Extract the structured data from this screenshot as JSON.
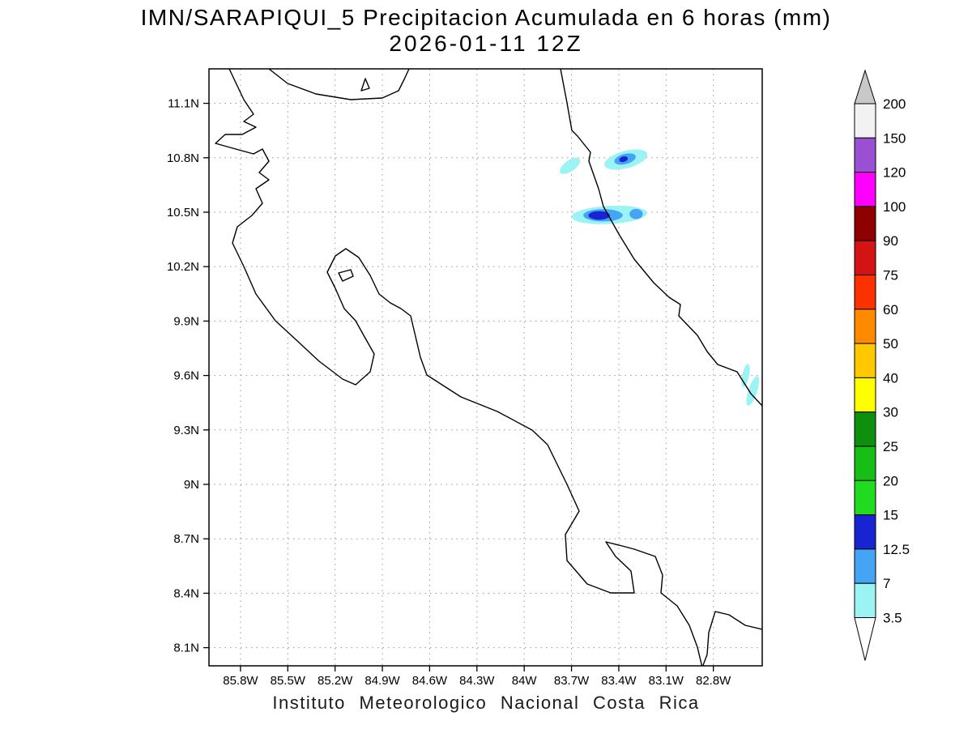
{
  "header": {
    "title_line1": "IMN/SARAPIQUI_5 Precipitacion Acumulada en 6 horas (mm)",
    "title_line2": "2026-01-11 12Z"
  },
  "footer": {
    "attribution": "Instituto Meteorologico Nacional Costa Rica"
  },
  "map": {
    "region": "Costa Rica",
    "extent": {
      "lon_west": 86.0,
      "lon_east": 82.49,
      "lat_north": 11.29,
      "lat_south": 8.0
    },
    "x_axis": {
      "tick_labels": [
        "85.8W",
        "85.5W",
        "85.2W",
        "84.9W",
        "84.6W",
        "84.3W",
        "84W",
        "83.7W",
        "83.4W",
        "83.1W",
        "82.8W"
      ],
      "tick_values": [
        85.8,
        85.5,
        85.2,
        84.9,
        84.6,
        84.3,
        84.0,
        83.7,
        83.4,
        83.1,
        82.8
      ]
    },
    "y_axis": {
      "tick_labels": [
        "11.1N",
        "10.8N",
        "10.5N",
        "10.2N",
        "9.9N",
        "9.6N",
        "9.3N",
        "9N",
        "8.7N",
        "8.4N",
        "8.1N"
      ],
      "tick_values": [
        11.1,
        10.8,
        10.5,
        10.2,
        9.9,
        9.6,
        9.3,
        9.0,
        8.7,
        8.4,
        8.1
      ]
    }
  },
  "colorbar": {
    "units": "mm",
    "levels_bottom_to_top": [
      "3.5",
      "7",
      "12.5",
      "15",
      "20",
      "25",
      "30",
      "40",
      "50",
      "60",
      "75",
      "90",
      "100",
      "120",
      "150",
      "200"
    ],
    "segment_colors_bottom_to_top": [
      "#9BF3F3",
      "#46A4F5",
      "#1823D2",
      "#21DB21",
      "#16BE16",
      "#0E8F0E",
      "#FFFF00",
      "#FFC800",
      "#FF8A00",
      "#FB3200",
      "#D41414",
      "#8F0000",
      "#FF00FF",
      "#9B4FD3",
      "#F2F2F2"
    ],
    "above_max_color": "#C8C8C8",
    "below_min_color": "#FFFFFF",
    "level_colors": {
      "3.5-7": "#9BF3F3",
      "7-12.5": "#46A4F5",
      "12.5-15": "#1823D2"
    }
  },
  "precipitation_features": [
    {
      "area": "north-caribbean-coast-left-sliver",
      "lon_w": 83.71,
      "lat_n": 10.755,
      "rx_deg": 0.075,
      "ry_deg": 0.03,
      "rot_deg": -35,
      "level_mm": "3.5-7"
    },
    {
      "area": "north-caribbean-offshore-outer",
      "lon_w": 83.355,
      "lat_n": 10.79,
      "rx_deg": 0.14,
      "ry_deg": 0.048,
      "rot_deg": -15,
      "level_mm": "3.5-7"
    },
    {
      "area": "north-caribbean-offshore-mid",
      "lon_w": 83.36,
      "lat_n": 10.793,
      "rx_deg": 0.07,
      "ry_deg": 0.028,
      "rot_deg": -15,
      "level_mm": "7-12.5"
    },
    {
      "area": "north-caribbean-offshore-core",
      "lon_w": 83.37,
      "lat_n": 10.792,
      "rx_deg": 0.028,
      "ry_deg": 0.015,
      "rot_deg": -15,
      "level_mm": "12.5-15"
    },
    {
      "area": "tortuguero-band-outer",
      "lon_w": 83.46,
      "lat_n": 10.485,
      "rx_deg": 0.24,
      "ry_deg": 0.05,
      "rot_deg": -3,
      "level_mm": "3.5-7"
    },
    {
      "area": "tortuguero-band-mid",
      "lon_w": 83.5,
      "lat_n": 10.483,
      "rx_deg": 0.125,
      "ry_deg": 0.034,
      "rot_deg": 0,
      "level_mm": "7-12.5"
    },
    {
      "area": "tortuguero-band-core",
      "lon_w": 83.525,
      "lat_n": 10.482,
      "rx_deg": 0.068,
      "ry_deg": 0.024,
      "rot_deg": 0,
      "level_mm": "12.5-15"
    },
    {
      "area": "tortuguero-band-right-spot",
      "lon_w": 83.29,
      "lat_n": 10.49,
      "rx_deg": 0.042,
      "ry_deg": 0.028,
      "rot_deg": 0,
      "level_mm": "7-12.5"
    },
    {
      "area": "south-caribbean-coast-upper",
      "lon_w": 82.595,
      "lat_n": 9.6,
      "rx_deg": 0.022,
      "ry_deg": 0.065,
      "rot_deg": 12,
      "level_mm": "3.5-7"
    },
    {
      "area": "south-caribbean-coast-lower",
      "lon_w": 82.55,
      "lat_n": 9.515,
      "rx_deg": 0.028,
      "ry_deg": 0.085,
      "rot_deg": 18,
      "level_mm": "3.5-7"
    }
  ]
}
